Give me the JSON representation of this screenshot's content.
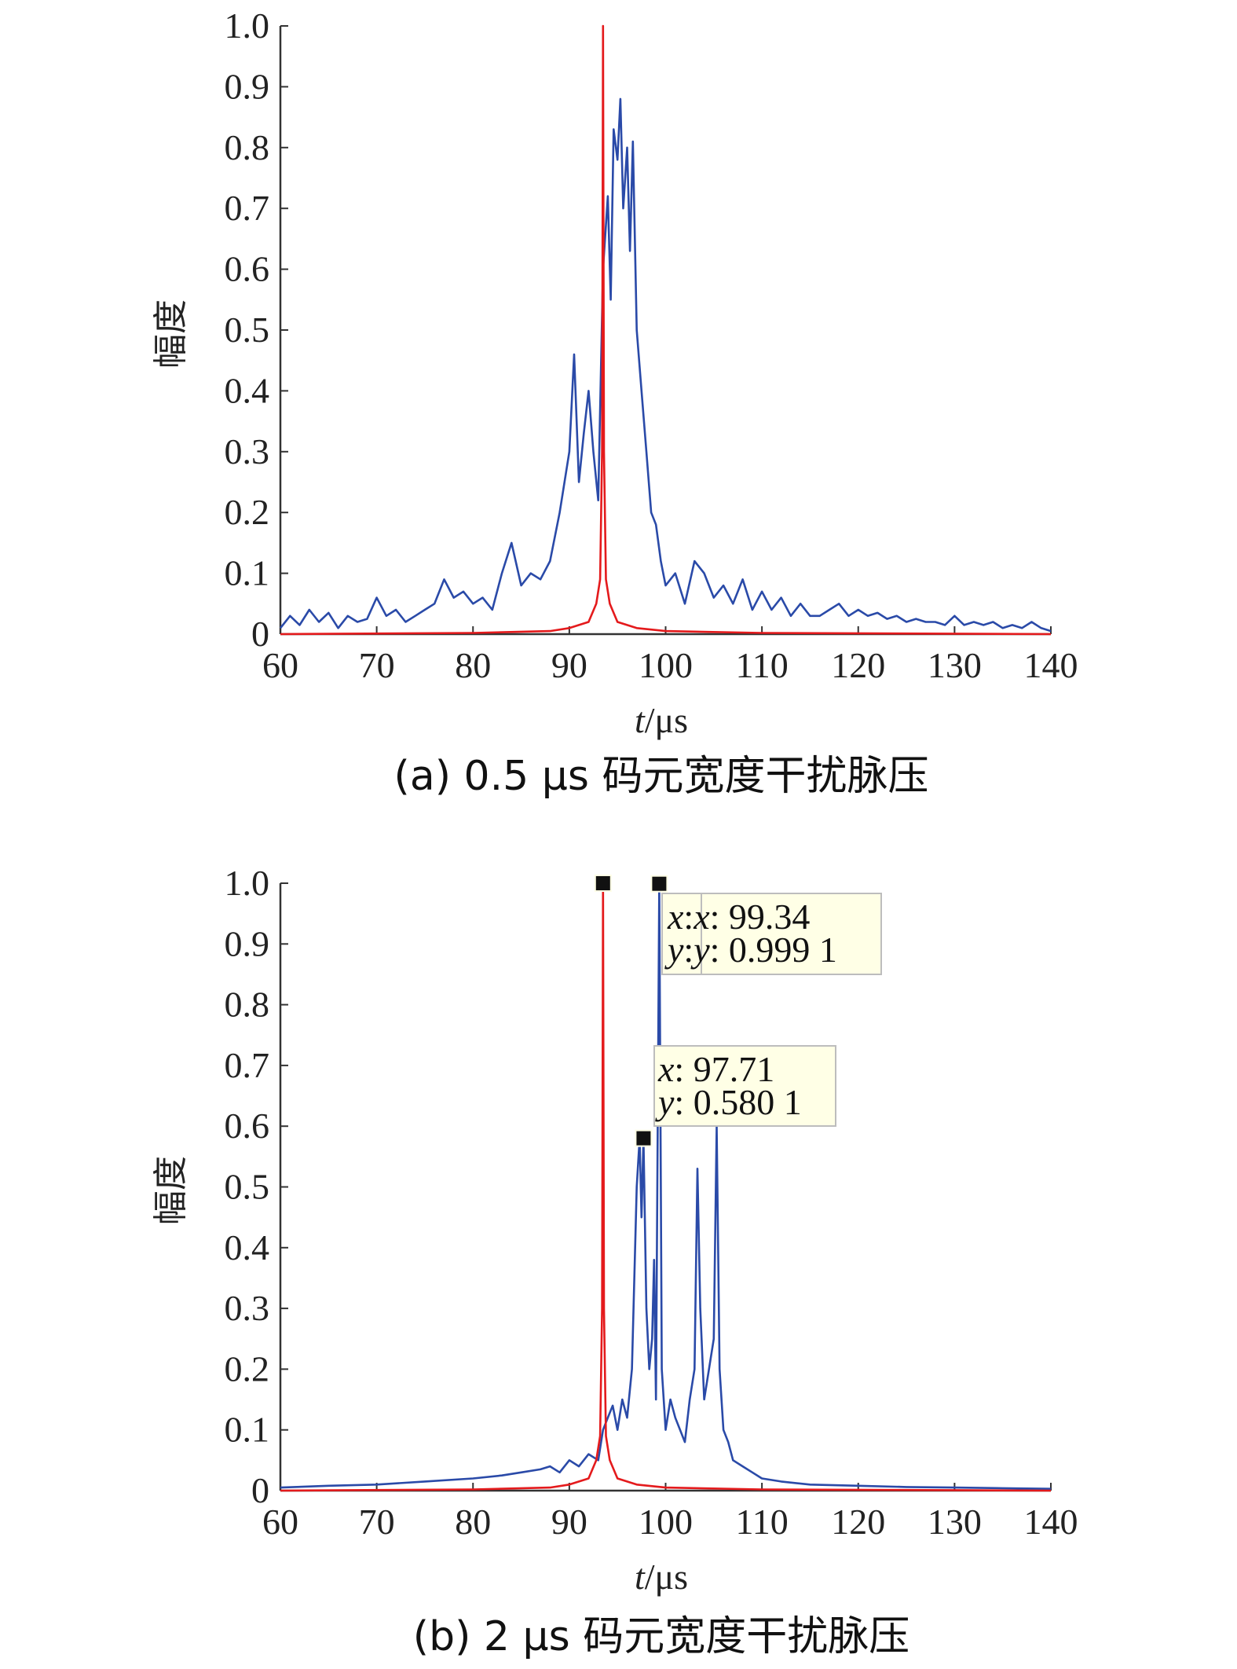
{
  "colors": {
    "ideal": "#e41a1c",
    "jammed": "#2a4aa8",
    "tip_bg": "#ffffe6",
    "tip_border": "#bdbdbd"
  },
  "chart_data": [
    {
      "type": "line",
      "caption": "(a) 0.5 μs 码元宽度干扰脉压",
      "xlabel_italic": "t",
      "xlabel_unit": "/μs",
      "ylabel": "幅度",
      "xlim": [
        60,
        140
      ],
      "ylim": [
        0,
        1.0
      ],
      "xticks": [
        60,
        70,
        80,
        90,
        100,
        110,
        120,
        130,
        140
      ],
      "yticks": [
        "0",
        "0.1",
        "0.2",
        "0.3",
        "0.4",
        "0.5",
        "0.6",
        "0.7",
        "0.8",
        "0.9",
        "1.0"
      ],
      "grid": false,
      "series": [
        {
          "color_key": "jammed",
          "x": [
            60,
            61,
            62,
            63,
            64,
            65,
            66,
            67,
            68,
            69,
            70,
            71,
            72,
            73,
            74,
            75,
            76,
            77,
            78,
            79,
            80,
            81,
            82,
            83,
            84,
            85,
            86,
            87,
            88,
            89,
            90,
            90.5,
            91,
            91.5,
            92,
            92.5,
            93,
            93.5,
            94,
            94.3,
            94.6,
            95,
            95.3,
            95.6,
            96,
            96.3,
            96.6,
            97,
            97.5,
            98,
            98.5,
            99,
            99.5,
            100,
            101,
            102,
            103,
            104,
            105,
            106,
            107,
            108,
            109,
            110,
            111,
            112,
            113,
            114,
            115,
            116,
            117,
            118,
            119,
            120,
            121,
            122,
            123,
            124,
            125,
            126,
            127,
            128,
            129,
            130,
            131,
            132,
            133,
            134,
            135,
            136,
            137,
            138,
            139,
            140
          ],
          "y": [
            0.01,
            0.03,
            0.015,
            0.04,
            0.02,
            0.035,
            0.01,
            0.03,
            0.02,
            0.025,
            0.06,
            0.03,
            0.04,
            0.02,
            0.03,
            0.04,
            0.05,
            0.09,
            0.06,
            0.07,
            0.05,
            0.06,
            0.04,
            0.1,
            0.15,
            0.08,
            0.1,
            0.09,
            0.12,
            0.2,
            0.3,
            0.46,
            0.25,
            0.33,
            0.4,
            0.3,
            0.22,
            0.6,
            0.72,
            0.55,
            0.83,
            0.78,
            0.88,
            0.7,
            0.8,
            0.63,
            0.81,
            0.5,
            0.4,
            0.3,
            0.2,
            0.18,
            0.12,
            0.08,
            0.1,
            0.05,
            0.12,
            0.1,
            0.06,
            0.08,
            0.05,
            0.09,
            0.04,
            0.07,
            0.04,
            0.06,
            0.03,
            0.05,
            0.03,
            0.03,
            0.04,
            0.05,
            0.03,
            0.04,
            0.03,
            0.035,
            0.025,
            0.03,
            0.02,
            0.025,
            0.02,
            0.02,
            0.015,
            0.03,
            0.015,
            0.02,
            0.015,
            0.02,
            0.01,
            0.015,
            0.01,
            0.02,
            0.01,
            0.005
          ]
        },
        {
          "color_key": "ideal",
          "x": [
            60,
            80,
            88,
            90,
            92,
            92.8,
            93.2,
            93.4,
            93.5,
            93.6,
            93.8,
            94.2,
            95,
            97,
            100,
            110,
            140
          ],
          "y": [
            0,
            0.002,
            0.005,
            0.01,
            0.02,
            0.05,
            0.09,
            0.3,
            1.0,
            0.3,
            0.09,
            0.05,
            0.02,
            0.01,
            0.005,
            0.002,
            0
          ]
        }
      ]
    },
    {
      "type": "line",
      "caption": "(b) 2 μs 码元宽度干扰脉压",
      "xlabel_italic": "t",
      "xlabel_unit": "/μs",
      "ylabel": "幅度",
      "xlim": [
        60,
        140
      ],
      "ylim": [
        0,
        1.0
      ],
      "xticks": [
        60,
        70,
        80,
        90,
        100,
        110,
        120,
        130,
        140
      ],
      "yticks": [
        "0",
        "0.1",
        "0.2",
        "0.3",
        "0.4",
        "0.5",
        "0.6",
        "0.7",
        "0.8",
        "0.9",
        "1.0"
      ],
      "grid": false,
      "series": [
        {
          "color_key": "jammed",
          "x": [
            60,
            65,
            70,
            75,
            80,
            83,
            85,
            87,
            88,
            89,
            90,
            91,
            92,
            93,
            93.5,
            94,
            94.5,
            95,
            95.5,
            96,
            96.5,
            97,
            97.3,
            97.5,
            97.7,
            98,
            98.3,
            98.6,
            98.8,
            99,
            99.34,
            99.6,
            100,
            100.5,
            101,
            101.5,
            102,
            102.5,
            103,
            103.3,
            103.6,
            104,
            104.5,
            105,
            105.3,
            105.6,
            106,
            106.5,
            107,
            108,
            109,
            110,
            112,
            115,
            120,
            125,
            130,
            135,
            140
          ],
          "y": [
            0.005,
            0.008,
            0.01,
            0.015,
            0.02,
            0.025,
            0.03,
            0.035,
            0.04,
            0.03,
            0.05,
            0.04,
            0.06,
            0.05,
            0.1,
            0.12,
            0.14,
            0.1,
            0.15,
            0.12,
            0.2,
            0.5,
            0.58,
            0.45,
            0.5801,
            0.3,
            0.2,
            0.25,
            0.38,
            0.15,
            0.9991,
            0.2,
            0.1,
            0.15,
            0.12,
            0.1,
            0.08,
            0.15,
            0.2,
            0.53,
            0.3,
            0.15,
            0.2,
            0.25,
            0.6,
            0.2,
            0.1,
            0.08,
            0.05,
            0.04,
            0.03,
            0.02,
            0.015,
            0.01,
            0.008,
            0.006,
            0.005,
            0.004,
            0.003
          ]
        },
        {
          "color_key": "ideal",
          "x": [
            60,
            80,
            88,
            90,
            92,
            92.8,
            93.2,
            93.4,
            93.5,
            93.6,
            93.8,
            94.2,
            95,
            97,
            100,
            110,
            140
          ],
          "y": [
            0,
            0.002,
            0.005,
            0.01,
            0.02,
            0.05,
            0.09,
            0.3,
            1.0,
            0.3,
            0.09,
            0.05,
            0.02,
            0.01,
            0.005,
            0.002,
            0
          ]
        }
      ],
      "markers": [
        {
          "x": 93.5,
          "y": 1.0
        },
        {
          "x": 99.34,
          "y": 0.9991
        },
        {
          "x": 97.71,
          "y": 0.5801
        }
      ],
      "datatips": [
        {
          "x_prefix": "x",
          "y_prefix": "y",
          "x_text": "99.34",
          "y_text": "0.999 1",
          "stacked": true
        },
        {
          "x_prefix": "x",
          "y_prefix": "y",
          "x_text": "97.71",
          "y_text": "0.580 1",
          "stacked": false
        }
      ]
    }
  ]
}
